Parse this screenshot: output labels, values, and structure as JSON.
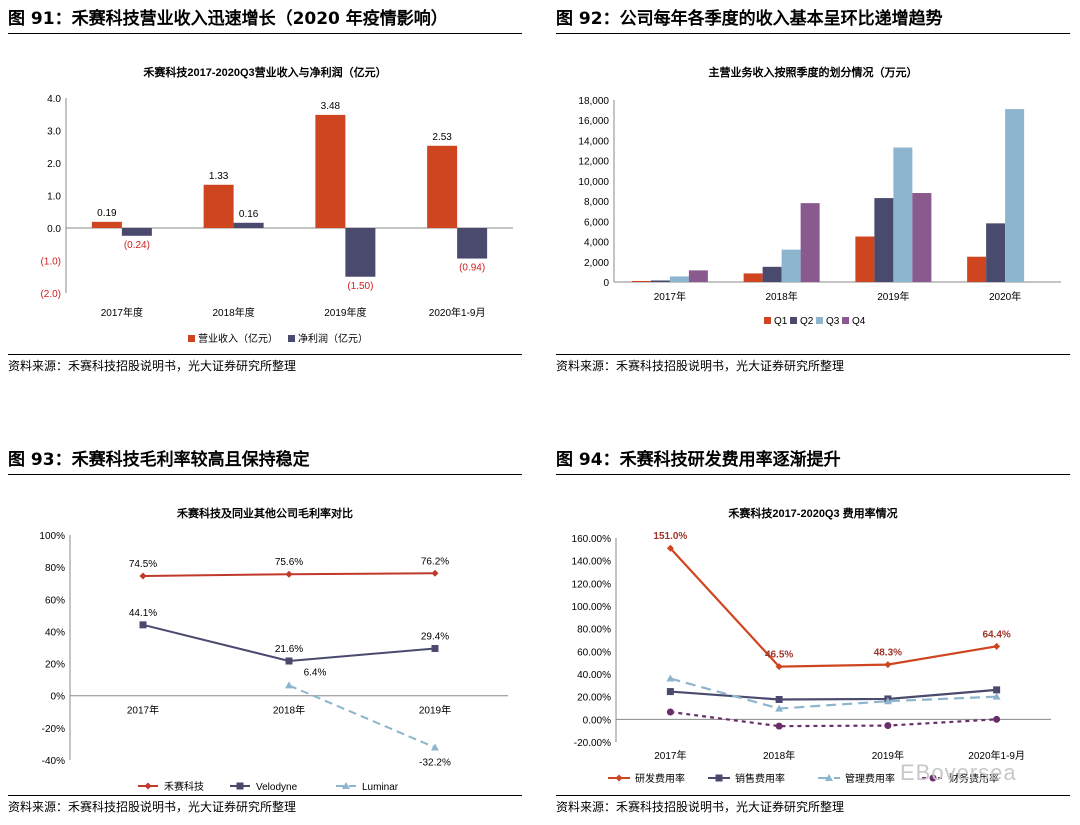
{
  "figures": [
    {
      "title": "图 91：禾赛科技营业收入迅速增长（2020 年疫情影响）",
      "source": "资料来源：禾赛科技招股说明书，光大证券研究所整理"
    },
    {
      "title": "图 92：公司每年各季度的收入基本呈环比递增趋势",
      "source": "资料来源：禾赛科技招股说明书，光大证券研究所整理"
    },
    {
      "title": "图 93：禾赛科技毛利率较高且保持稳定",
      "source": "资料来源：禾赛科技招股说明书，光大证券研究所整理"
    },
    {
      "title": "图 94：禾赛科技研发费用率逐渐提升",
      "source": "资料来源：禾赛科技招股说明书，光大证券研究所整理"
    }
  ],
  "watermark": "EBoversea",
  "colors": {
    "orange": "#CF4520",
    "navy": "#4A4A6E",
    "lightblue": "#8DB5CD",
    "purple": "#8A5A8E",
    "red": "#C0392B",
    "dashblue": "#8DB5CD",
    "darkpurple": "#6A2F6A"
  },
  "chart_data": [
    {
      "type": "bar",
      "title": "禾赛科技2017-2020Q3营业收入与净利润（亿元）",
      "categories": [
        "2017年度",
        "2018年度",
        "2019年度",
        "2020年1-9月"
      ],
      "series": [
        {
          "name": "营业收入（亿元）",
          "values": [
            0.19,
            1.33,
            3.48,
            2.53
          ],
          "labels": [
            "0.19",
            "1.33",
            "3.48",
            "2.53"
          ]
        },
        {
          "name": "净利润（亿元）",
          "values": [
            -0.24,
            0.16,
            -1.5,
            -0.94
          ],
          "labels": [
            "(0.24)",
            "0.16",
            "(1.50)",
            "(0.94)"
          ]
        }
      ],
      "ylim": [
        -2.0,
        4.0
      ],
      "yticks": [
        4.0,
        3.0,
        2.0,
        1.0,
        0.0,
        -1.0,
        -2.0
      ],
      "ytick_labels": [
        "4.0",
        "3.0",
        "2.0",
        "1.0",
        "0.0",
        "(1.0)",
        "(2.0)"
      ],
      "legend": "bottom"
    },
    {
      "type": "bar",
      "title": "主营业务收入按照季度的划分情况（万元）",
      "categories": [
        "2017年",
        "2018年",
        "2019年",
        "2020年"
      ],
      "series": [
        {
          "name": "Q1",
          "values": [
            100,
            850,
            4500,
            2500
          ]
        },
        {
          "name": "Q2",
          "values": [
            150,
            1500,
            8300,
            5800
          ]
        },
        {
          "name": "Q3",
          "values": [
            550,
            3200,
            13300,
            17100
          ]
        },
        {
          "name": "Q4",
          "values": [
            1150,
            7800,
            8800,
            null
          ]
        }
      ],
      "ylim": [
        0,
        18000
      ],
      "yticks": [
        0,
        2000,
        4000,
        6000,
        8000,
        10000,
        12000,
        14000,
        16000,
        18000
      ],
      "ytick_labels": [
        "0",
        "2,000",
        "4,000",
        "6,000",
        "8,000",
        "10,000",
        "12,000",
        "14,000",
        "16,000",
        "18,000"
      ],
      "legend": "bottom"
    },
    {
      "type": "line",
      "title": "禾赛科技及同业其他公司毛利率对比",
      "categories": [
        "2017年",
        "2018年",
        "2019年"
      ],
      "series": [
        {
          "name": "禾赛科技",
          "values": [
            74.5,
            75.6,
            76.2
          ],
          "labels": [
            "74.5%",
            "75.6%",
            "76.2%"
          ]
        },
        {
          "name": "Velodyne",
          "values": [
            44.1,
            21.6,
            29.4
          ],
          "labels": [
            "44.1%",
            "21.6%",
            "29.4%"
          ]
        },
        {
          "name": "Luminar",
          "values": [
            null,
            6.4,
            -32.2
          ],
          "labels": [
            "",
            "6.4%",
            "-32.2%"
          ]
        }
      ],
      "ylim": [
        -40,
        100
      ],
      "yticks": [
        100,
        80,
        60,
        40,
        20,
        0,
        -20,
        -40
      ],
      "ytick_labels": [
        "100%",
        "80%",
        "60%",
        "40%",
        "20%",
        "0%",
        "-20%",
        "-40%"
      ],
      "legend": "bottom"
    },
    {
      "type": "line",
      "title": "禾赛科技2017-2020Q3 费用率情况",
      "categories": [
        "2017年",
        "2018年",
        "2019年",
        "2020年1-9月"
      ],
      "series": [
        {
          "name": "研发费用率",
          "values": [
            151.0,
            46.5,
            48.3,
            64.4
          ],
          "labels": [
            "151.0%",
            "46.5%",
            "48.3%",
            "64.4%"
          ]
        },
        {
          "name": "销售费用率",
          "values": [
            24.5,
            17.5,
            18.0,
            26.0
          ]
        },
        {
          "name": "管理费用率",
          "values": [
            36.0,
            9.5,
            16.0,
            20.0
          ]
        },
        {
          "name": "财务费用率",
          "values": [
            6.5,
            -6.0,
            -5.5,
            0.0
          ]
        }
      ],
      "ylim": [
        -20,
        160
      ],
      "yticks": [
        160,
        140,
        120,
        100,
        80,
        60,
        40,
        20,
        0,
        -20
      ],
      "ytick_labels": [
        "160.00%",
        "140.00%",
        "120.00%",
        "100.00%",
        "80.00%",
        "60.00%",
        "40.00%",
        "20.00%",
        "0.00%",
        "-20.00%"
      ],
      "legend": "bottom"
    }
  ]
}
